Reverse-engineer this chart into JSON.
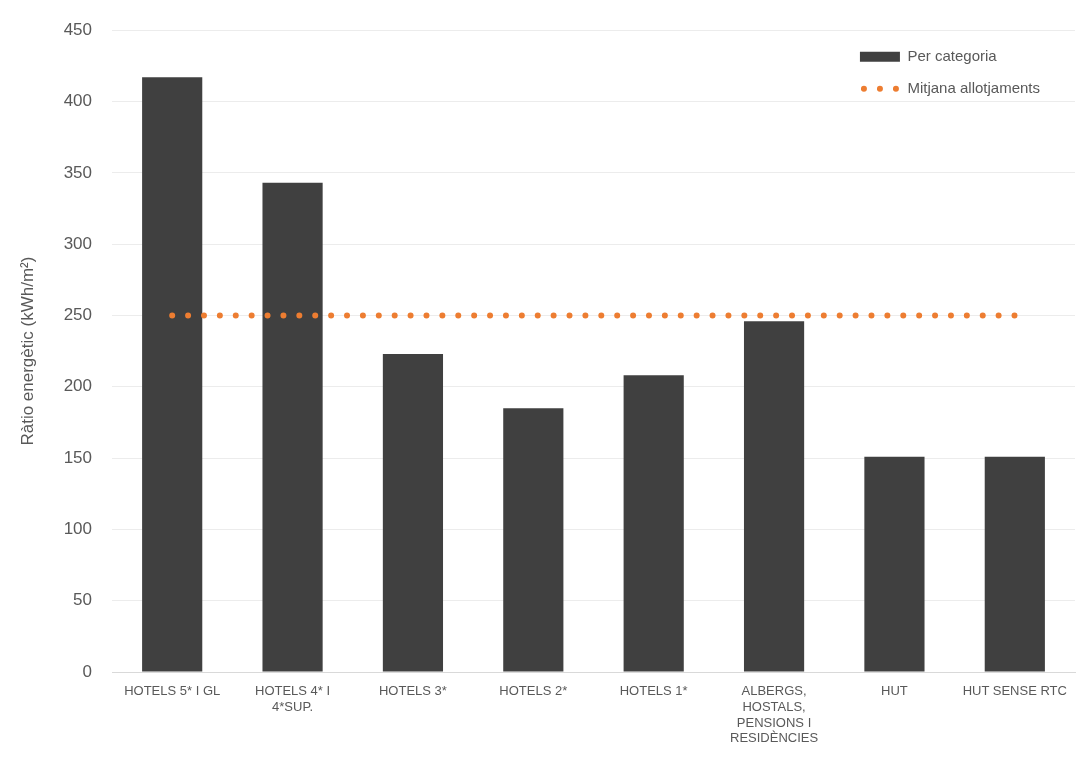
{
  "chart_data": {
    "type": "bar",
    "ylabel": "Ràtio energètic (kWh/m²)",
    "categories": [
      "HOTELS 5* I GL",
      "HOTELS 4* I 4*SUP.",
      "HOTELS 3*",
      "HOTELS 2*",
      "HOTELS 1*",
      "ALBERGS, HOSTALS, PENSIONS I RESIDÈNCIES",
      "HUT",
      "HUT SENSE RTC"
    ],
    "series": [
      {
        "name": "Per categoria",
        "color": "#404040",
        "values": [
          417,
          343,
          223,
          185,
          208,
          246,
          151,
          151
        ]
      },
      {
        "name": "Mitjana allotjaments",
        "type": "line",
        "color": "#ed7d31",
        "line_style": "dotted",
        "values": [
          250,
          250,
          250,
          250,
          250,
          250,
          250,
          250
        ]
      }
    ],
    "ylim": [
      0,
      450
    ],
    "yticks": [
      0,
      50,
      100,
      150,
      200,
      250,
      300,
      350,
      400,
      450
    ],
    "grid": "y",
    "legend": "top right"
  }
}
